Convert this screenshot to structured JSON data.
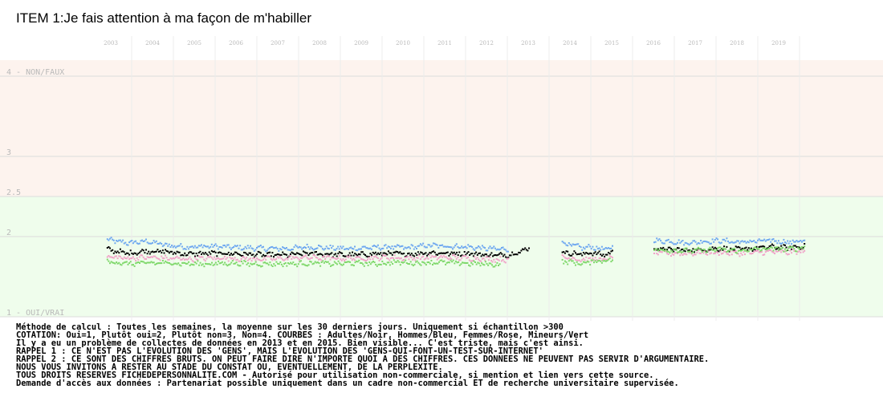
{
  "chart_data": {
    "type": "scatter",
    "title": "ITEM 1:Je fais attention à ma façon de m'habiller",
    "x_tick_labels": [
      "2003",
      "2004",
      "2005",
      "2006",
      "2007",
      "2008",
      "2009",
      "2010",
      "2011",
      "2012",
      "2013",
      "2014",
      "2015",
      "2016",
      "2017",
      "2018",
      "2019"
    ],
    "y_tick_labels": [
      {
        "value": 4,
        "label": "4 - NON/FAUX"
      },
      {
        "value": 3,
        "label": "3"
      },
      {
        "value": 2.5,
        "label": "2.5"
      },
      {
        "value": 2,
        "label": "2"
      },
      {
        "value": 1,
        "label": "1 - OUI/VRAI"
      }
    ],
    "ylim": [
      1,
      4.2
    ],
    "xlim": [
      2002.6,
      2020.3
    ],
    "background_bands": [
      {
        "from": 2.5,
        "to": 4.2,
        "color": "#fdf3ee"
      },
      {
        "from": 1,
        "to": 2.5,
        "color": "#effdec"
      }
    ],
    "gap_periods": [
      [
        2013.0,
        2013.8
      ],
      [
        2015.0,
        2016.0
      ]
    ],
    "series": [
      {
        "color": "#6fa8f0",
        "segments": [
          {
            "start": 2002.9,
            "end": 2012.5,
            "values": [
              1.97,
              1.93,
              1.95,
              1.9,
              1.88,
              1.89,
              1.88,
              1.87,
              1.86,
              1.86,
              1.88,
              1.87,
              1.86,
              1.87,
              1.88,
              1.87,
              1.9,
              1.89,
              1.88,
              1.86,
              1.85
            ]
          },
          {
            "start": 2013.8,
            "end": 2015.0,
            "values": [
              1.93,
              1.9,
              1.87,
              1.88,
              1.85,
              1.87
            ]
          },
          {
            "start": 2016.0,
            "end": 2019.6,
            "values": [
              1.96,
              1.95,
              1.93,
              1.95,
              1.96,
              1.94,
              1.95,
              1.96,
              1.94,
              1.96
            ]
          }
        ]
      },
      {
        "color": "#000000",
        "segments": [
          {
            "start": 2002.9,
            "end": 2013.0,
            "values": [
              1.85,
              1.8,
              1.83,
              1.82,
              1.79,
              1.8,
              1.8,
              1.79,
              1.78,
              1.78,
              1.8,
              1.79,
              1.78,
              1.79,
              1.8,
              1.79,
              1.81,
              1.8,
              1.8,
              1.78,
              1.78,
              1.86
            ]
          },
          {
            "start": 2013.8,
            "end": 2015.0,
            "values": [
              1.82,
              1.8,
              1.79,
              1.81,
              1.78,
              1.81
            ]
          },
          {
            "start": 2016.0,
            "end": 2019.6,
            "values": [
              1.86,
              1.85,
              1.84,
              1.85,
              1.86,
              1.85,
              1.86,
              1.88,
              1.87,
              1.89
            ]
          }
        ]
      },
      {
        "color": "#f0a3c8",
        "segments": [
          {
            "start": 2002.9,
            "end": 2012.5,
            "values": [
              1.76,
              1.74,
              1.75,
              1.74,
              1.73,
              1.74,
              1.74,
              1.73,
              1.73,
              1.74,
              1.75,
              1.74,
              1.74,
              1.74,
              1.75,
              1.74,
              1.75,
              1.75,
              1.74,
              1.73,
              1.72
            ]
          },
          {
            "start": 2013.8,
            "end": 2015.0,
            "values": [
              1.76,
              1.74,
              1.72,
              1.73,
              1.72,
              1.74
            ]
          },
          {
            "start": 2016.0,
            "end": 2019.6,
            "values": [
              1.81,
              1.8,
              1.8,
              1.81,
              1.81,
              1.8,
              1.81,
              1.82,
              1.81,
              1.83
            ]
          }
        ]
      },
      {
        "color": "#7fd86b",
        "segments": [
          {
            "start": 2002.9,
            "end": 2012.3,
            "values": [
              1.7,
              1.67,
              1.68,
              1.68,
              1.67,
              1.67,
              1.68,
              1.67,
              1.67,
              1.67,
              1.68,
              1.67,
              1.68,
              1.67,
              1.69,
              1.68,
              1.69,
              1.68,
              1.67,
              1.66
            ]
          },
          {
            "start": 2013.8,
            "end": 2015.0,
            "values": [
              1.7,
              1.69,
              1.67,
              1.7,
              1.71,
              1.72
            ]
          },
          {
            "start": 2016.0,
            "end": 2019.6,
            "values": [
              1.85,
              1.84,
              1.83,
              1.84,
              1.85,
              1.83,
              1.85,
              1.86,
              1.85,
              1.87
            ]
          }
        ]
      }
    ]
  },
  "notes": [
    "Méthode de calcul : Toutes les semaines, la moyenne sur les 30 derniers jours. Uniquement si échantillon >300",
    "COTATION: Oui=1, Plutôt oui=2, Plutôt non=3, Non=4. COURBES : Adultes/Noir, Hommes/Bleu, Femmes/Rose, Mineurs/Vert",
    "Il y a eu un problème de collectes de données en 2013 et en 2015. Bien visible... C'est triste, mais c'est ainsi.",
    "RAPPEL 1 : CE N'EST PAS L'EVOLUTION DES 'GENS', MAIS L'EVOLUTION DES 'GENS-QUI-FONT-UN-TEST-SUR-INTERNET'",
    "RAPPEL 2 : CE SONT DES CHIFFRES BRUTS. ON PEUT FAIRE DIRE N'IMPORTE QUOI A DES CHIFFRES. CES DONNEES NE PEUVENT PAS SERVIR D'ARGUMENTAIRE.",
    "           NOUS VOUS INVITONS A RESTER AU STADE DU CONSTAT OU, EVENTUELLEMENT,  DE LA PERPLEXITE.",
    "TOUS DROITS RESERVES FICHEDEPERSONNALITE.COM - Autorisé pour utilisation non-commerciale, si mention et lien vers cette source.",
    "Demande d'accès aux données : Partenariat possible uniquement dans un cadre non-commercial ET de recherche universitaire supervisée."
  ]
}
